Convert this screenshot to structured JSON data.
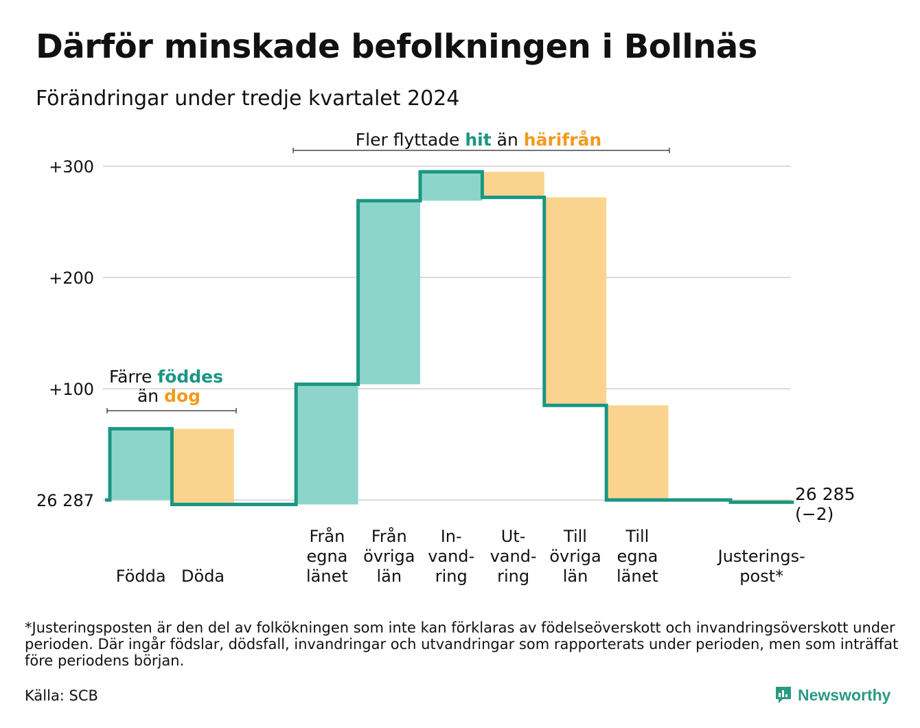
{
  "title": "Därför minskade befolkningen i Bollnäs",
  "subtitle": "Förändringar under tredje kvartalet 2024",
  "colors": {
    "positive": "#8dd5cb",
    "negative": "#fad48e",
    "line": "#1b9682",
    "accent_teal": "#1b9682",
    "accent_orange": "#f29a1c",
    "grid": "#dcdcdc"
  },
  "annotations": {
    "natural": {
      "line1_pre": "Färre ",
      "line1_hl": "föddes",
      "line2_pre": "än ",
      "line2_hl": "dog"
    },
    "migration": {
      "pre": "Fler flyttade ",
      "hl1": "hit",
      "mid": " än ",
      "hl2": "härifrån"
    }
  },
  "end_label": {
    "value": "26 285",
    "change": "(−2)"
  },
  "footnote": "*Justeringsposten är den del av folkökningen som inte kan förklaras av födelseöverskott och invandringsöverskott under perioden. Där ingår födslar, dödsfall, invandringar och utvandringar som rapporterats under perioden, men som inträffat före periodens början.",
  "source": "Källa: SCB",
  "brand": "Newsworthy",
  "chart_data": {
    "type": "waterfall",
    "start_value": 26287,
    "end_value": 26285,
    "change": -2,
    "y_ticks": [
      {
        "value": 0,
        "label": "26 287"
      },
      {
        "value": 100,
        "label": "+100"
      },
      {
        "value": 200,
        "label": "+200"
      },
      {
        "value": 300,
        "label": "+300"
      }
    ],
    "ylim": [
      0,
      300
    ],
    "categories": [
      {
        "label": [
          "Födda"
        ],
        "value": 64
      },
      {
        "label": [
          "Döda"
        ],
        "value": -68
      },
      {
        "label": [],
        "value": 0
      },
      {
        "label": [
          "Från",
          "egna",
          "länet"
        ],
        "value": 108
      },
      {
        "label": [
          "Från",
          "övriga",
          "län"
        ],
        "value": 165
      },
      {
        "label": [
          "In-",
          "vand-",
          "ring"
        ],
        "value": 26
      },
      {
        "label": [
          "Ut-",
          "vand-",
          "ring"
        ],
        "value": -23
      },
      {
        "label": [
          "Till",
          "övriga",
          "län"
        ],
        "value": -187
      },
      {
        "label": [
          "Till",
          "egna",
          "länet"
        ],
        "value": -85
      },
      {
        "label": [],
        "value": 0
      },
      {
        "label": [
          "Justerings-",
          "post*"
        ],
        "value": -2
      }
    ]
  }
}
